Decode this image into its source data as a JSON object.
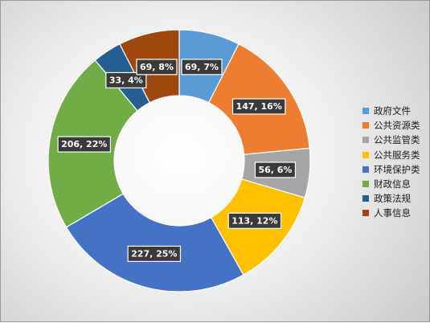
{
  "chart_data": {
    "type": "pie",
    "style": "donut",
    "legend_position": "right",
    "series": [
      {
        "name": "政府文件",
        "value": 69,
        "percent": "7%",
        "color": "#5B9BD5"
      },
      {
        "name": "公共资源类",
        "value": 147,
        "percent": "16%",
        "color": "#ED7D31"
      },
      {
        "name": "公共监管类",
        "value": 56,
        "percent": "6%",
        "color": "#A5A5A5"
      },
      {
        "name": "公共服务类",
        "value": 113,
        "percent": "12%",
        "color": "#FFC000"
      },
      {
        "name": "环境保护类",
        "value": 227,
        "percent": "25%",
        "color": "#4472C4"
      },
      {
        "name": "财政信息",
        "value": 206,
        "percent": "22%",
        "color": "#70AD47"
      },
      {
        "name": "政策法规",
        "value": 33,
        "percent": "4%",
        "color": "#255E91"
      },
      {
        "name": "人事信息",
        "value": 69,
        "percent": "8%",
        "color": "#9E480E"
      }
    ]
  }
}
